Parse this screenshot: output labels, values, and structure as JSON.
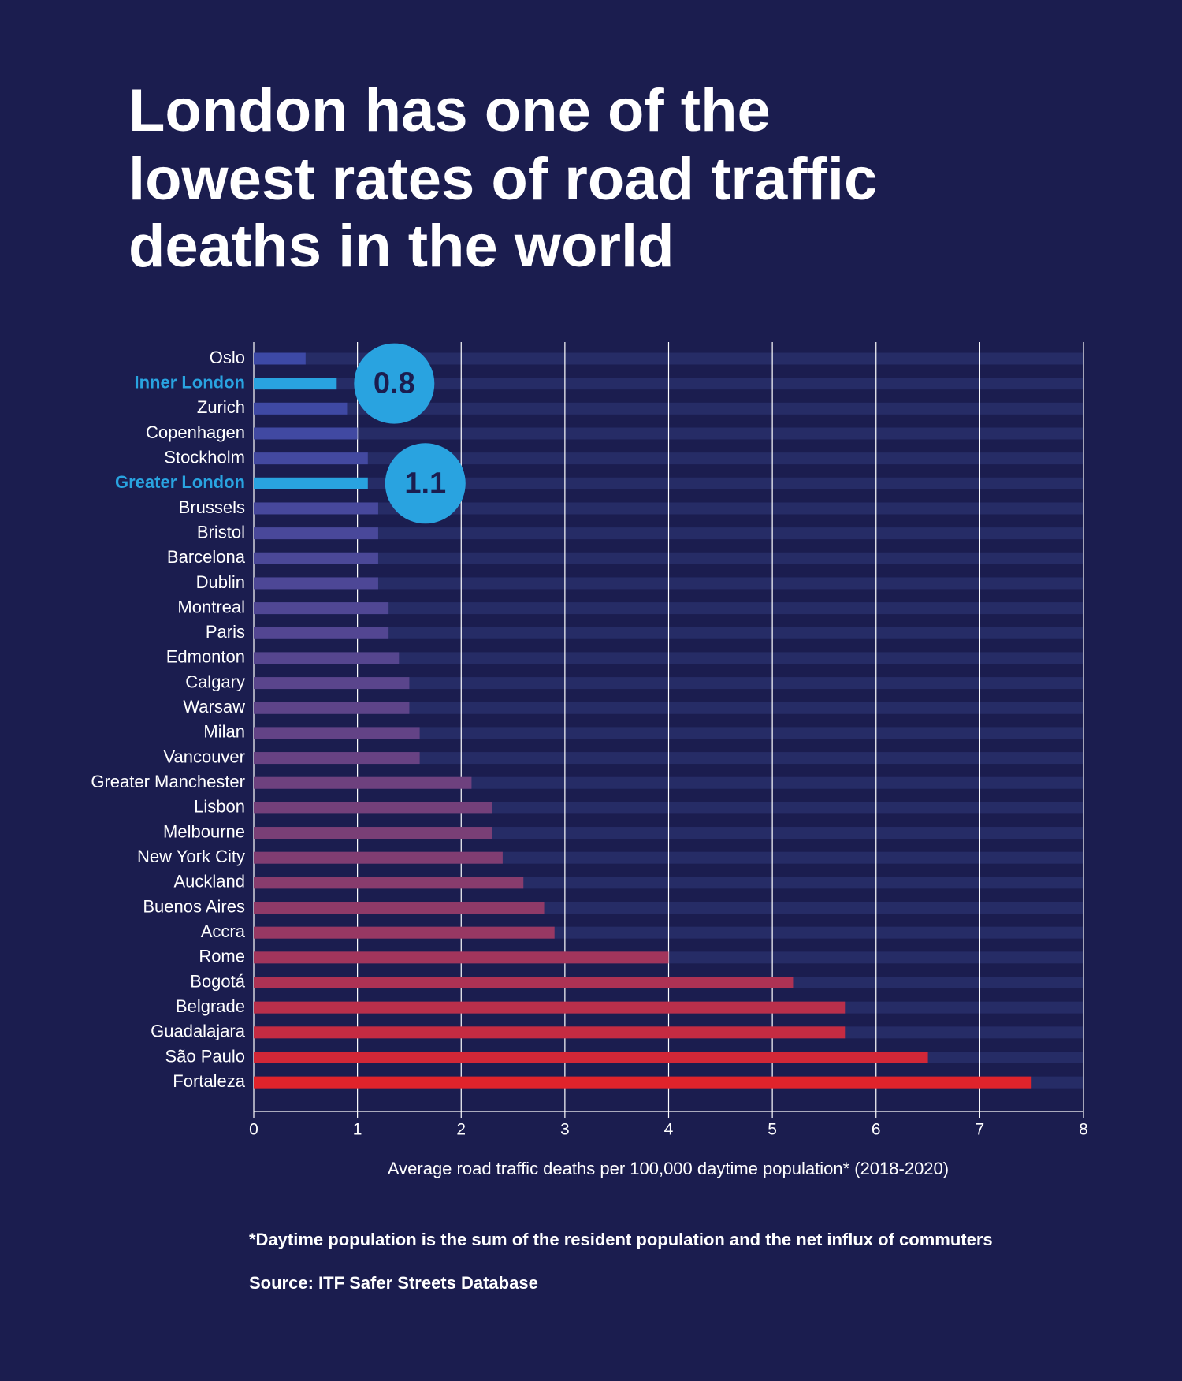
{
  "chart_data": {
    "type": "bar",
    "orientation": "horizontal",
    "title": [
      "London has one of the",
      "lowest rates of road traffic",
      "deaths in the world"
    ],
    "categories": [
      "Oslo",
      "Inner London",
      "Zurich",
      "Copenhagen",
      "Stockholm",
      "Greater London",
      "Brussels",
      "Bristol",
      "Barcelona",
      "Dublin",
      "Montreal",
      "Paris",
      "Edmonton",
      "Calgary",
      "Warsaw",
      "Milan",
      "Vancouver",
      "Greater Manchester",
      "Lisbon",
      "Melbourne",
      "New York City",
      "Auckland",
      "Buenos Aires",
      "Accra",
      "Rome",
      "Bogotá",
      "Belgrade",
      "Guadalajara",
      "São Paulo",
      "Fortaleza"
    ],
    "values": [
      0.5,
      0.8,
      0.9,
      1.0,
      1.1,
      1.1,
      1.2,
      1.2,
      1.2,
      1.2,
      1.3,
      1.3,
      1.4,
      1.5,
      1.5,
      1.6,
      1.6,
      2.1,
      2.3,
      2.3,
      2.4,
      2.6,
      2.8,
      2.9,
      4.0,
      5.2,
      5.7,
      5.7,
      6.5,
      7.5
    ],
    "colors": [
      "#3d49a6",
      "#29a3e0",
      "#3f49a4",
      "#4149a2",
      "#4349a0",
      "#29a3e0",
      "#47489c",
      "#49489a",
      "#4b4898",
      "#4d4796",
      "#504794",
      "#534692",
      "#56468f",
      "#5a458c",
      "#5e4489",
      "#634386",
      "#684283",
      "#6e417e",
      "#74407a",
      "#7a3f76",
      "#813d72",
      "#883c6d",
      "#903a68",
      "#983863",
      "#a2355c",
      "#ad3254",
      "#b92f4b",
      "#c52b42",
      "#d22737",
      "#e0232b"
    ],
    "highlight_color": "#29a3e0",
    "xlim": [
      0,
      8
    ],
    "xticks": [
      0,
      1,
      2,
      3,
      4,
      5,
      6,
      7,
      8
    ],
    "grid": true,
    "x_label": "Average road traffic deaths per 100,000 daytime population* (2018-2020)",
    "footnote": "*Daytime population is the sum of the resident population and the net influx of commuters",
    "source": "Source: ITF Safer Streets Database"
  }
}
